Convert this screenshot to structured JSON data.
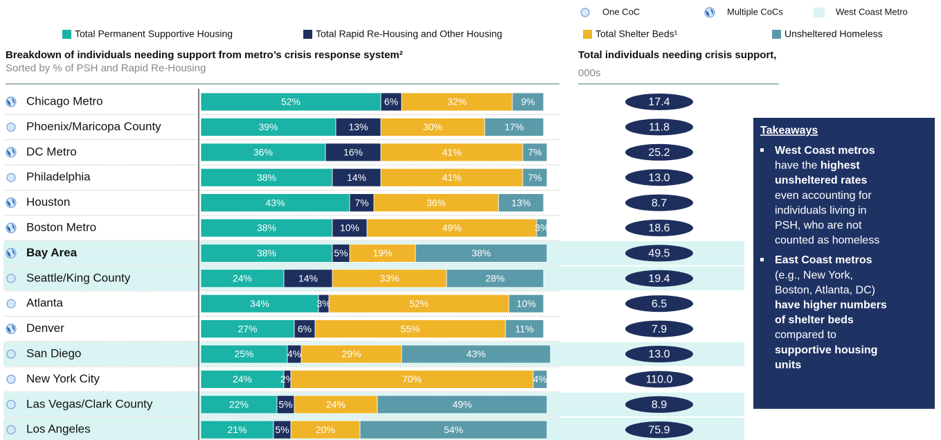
{
  "chart_data": [
    {
      "type": "stacked-bar",
      "title": "Breakdown of individuals needing support from metro’s crisis response system²",
      "subtitle": "Sorted by % of PSH and Rapid Re-Housing",
      "row_legend": [
        "One CoC",
        "Multiple CoCs",
        "West Coast Metro"
      ],
      "row_markers": [
        1,
        0,
        1,
        0,
        1,
        1,
        1,
        0,
        0,
        1,
        0,
        0,
        0,
        0
      ],
      "highlight_rows": [
        false,
        false,
        false,
        false,
        false,
        false,
        true,
        true,
        false,
        false,
        true,
        false,
        true,
        true
      ],
      "bold_rows": [
        false,
        false,
        false,
        false,
        false,
        false,
        true,
        false,
        false,
        false,
        false,
        false,
        false,
        false
      ],
      "xlim": [
        0,
        100
      ],
      "categories": [
        "Chicago Metro",
        "Phoenix/Maricopa County",
        "DC Metro",
        "Philadelphia",
        "Houston",
        "Boston Metro",
        "Bay Area",
        "Seattle/King County",
        "Atlanta",
        "Denver",
        "San Diego",
        "New York City",
        "Las Vegas/Clark County",
        "Los Angeles"
      ],
      "series": [
        {
          "name": "Total Permanent Supportive Housing",
          "color": "#1ab3a6",
          "values": [
            52,
            39,
            36,
            38,
            43,
            38,
            38,
            24,
            34,
            27,
            25,
            24,
            22,
            21
          ],
          "value_labels": [
            "52%",
            "39%",
            "36%",
            "38%",
            "43%",
            "38%",
            "38%",
            "24%",
            "34%",
            "27%",
            "25%",
            "24%",
            "22%",
            "21%"
          ]
        },
        {
          "name": "Total Rapid Re-Housing and Other Housing",
          "color": "#1e2f5e",
          "values": [
            6,
            13,
            16,
            14,
            7,
            10,
            5,
            14,
            3,
            6,
            4,
            2,
            5,
            5
          ],
          "value_labels": [
            "6%",
            "13%",
            "16%",
            "14%",
            "7%",
            "10%",
            "5%",
            "14%",
            "3%",
            "6%",
            "4%",
            "2%",
            "5%",
            "5%"
          ]
        },
        {
          "name": "Total Shelter Beds¹",
          "color": "#f0b429",
          "values": [
            32,
            30,
            41,
            41,
            36,
            49,
            19,
            33,
            52,
            55,
            29,
            70,
            24,
            20
          ],
          "value_labels": [
            "32%",
            "30%",
            "41%",
            "41%",
            "36%",
            "49%",
            "19%",
            "33%",
            "52%",
            "55%",
            "29%",
            "70%",
            "24%",
            "20%"
          ]
        },
        {
          "name": "Unsheltered Homeless",
          "color": "#5b9aa9",
          "values": [
            9,
            17,
            7,
            7,
            13,
            3,
            38,
            28,
            10,
            11,
            43,
            4,
            49,
            54
          ],
          "value_labels": [
            "9%",
            "17%",
            "7%",
            "7%",
            "13%",
            "3%",
            "38%",
            "28%",
            "10%",
            "11%",
            "43%",
            "4%",
            "49%",
            "54%"
          ]
        }
      ]
    },
    {
      "type": "label",
      "title": "Total individuals needing crisis support,",
      "subtitle": "000s",
      "color": "#1e2f5e",
      "values": [
        17.4,
        11.8,
        25.2,
        13.0,
        8.7,
        18.6,
        49.5,
        19.4,
        6.5,
        7.9,
        13.0,
        110.0,
        8.9,
        75.9
      ],
      "value_labels": [
        "17.4",
        "11.8",
        "25.2",
        "13.0",
        "8.7",
        "18.6",
        "49.5",
        "19.4",
        "6.5",
        "7.9",
        "13.0",
        "110.0",
        "8.9",
        "75.9"
      ]
    }
  ],
  "takeaways": {
    "title": "Takeaways",
    "bullets": [
      [
        [
          {
            "text": "West Coast metros",
            "bold": true
          }
        ],
        [
          {
            "text": "have the ",
            "bold": false
          },
          {
            "text": "highest",
            "bold": true
          }
        ],
        [
          {
            "text": "unsheltered rates",
            "bold": true
          }
        ],
        [
          {
            "text": "even accounting for",
            "bold": false
          }
        ],
        [
          {
            "text": "individuals living in",
            "bold": false
          }
        ],
        [
          {
            "text": "PSH, who are not",
            "bold": false
          }
        ],
        [
          {
            "text": "counted as homeless",
            "bold": false
          }
        ]
      ],
      [
        [
          {
            "text": "East Coast metros",
            "bold": true
          }
        ],
        [
          {
            "text": "(e.g., New York,",
            "bold": false
          }
        ],
        [
          {
            "text": "Boston, Atlanta, DC)",
            "bold": false
          }
        ],
        [
          {
            "text": "have higher numbers",
            "bold": true
          }
        ],
        [
          {
            "text": "of shelter beds",
            "bold": true
          }
        ],
        [
          {
            "text": "compared to",
            "bold": false
          }
        ],
        [
          {
            "text": "supportive housing",
            "bold": true
          }
        ],
        [
          {
            "text": "units",
            "bold": true
          }
        ]
      ]
    ]
  }
}
